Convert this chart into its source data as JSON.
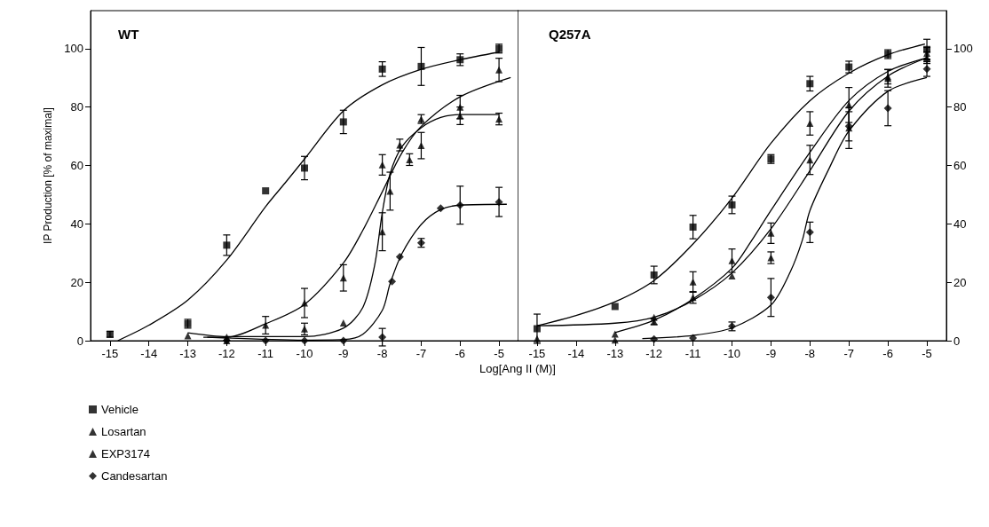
{
  "chart_data": [
    {
      "type": "scatter",
      "title": "WT",
      "ylabel": "IP Production [% of maximal]",
      "xlabel": "Log[Ang II (M)]",
      "xlim": [
        -15.5,
        -4.5
      ],
      "xticks": [
        -15,
        -14,
        -13,
        -12,
        -11,
        -10,
        -9,
        -8,
        -7,
        -6,
        -5
      ],
      "ylim": [
        0,
        113
      ],
      "yticks": [
        0,
        20,
        40,
        60,
        80,
        100
      ],
      "grid": false,
      "legend": "bottom left",
      "series": [
        {
          "name": "Vehicle",
          "color": "#000000",
          "marker": "square",
          "x": [
            -15,
            -13,
            -12,
            -11,
            -10,
            -9,
            -8,
            -7,
            -6,
            -5
          ],
          "values": [
            2.2,
            5.8,
            32.7,
            51.3,
            59.1,
            74.9,
            93,
            93.9,
            96.2,
            100
          ],
          "errors": [
            1,
            1.5,
            3.5,
            null,
            4,
            4,
            2.5,
            6.5,
            2,
            1.5
          ]
        },
        {
          "name": "Losartan",
          "color": "#000000",
          "marker": "triangle",
          "x": [
            -12,
            -11,
            -10,
            -9,
            -8,
            -7,
            -6,
            -5
          ],
          "values": [
            0,
            5.3,
            12.9,
            21.5,
            60.2,
            66.8,
            80,
            92.7
          ],
          "errors": [
            null,
            3,
            5,
            4.5,
            3.5,
            4.5,
            4,
            4
          ]
        },
        {
          "name": "EXP3174",
          "color": "#000000",
          "marker": "triangle",
          "x": [
            -13,
            -12,
            -10,
            -9,
            -8,
            -7.8,
            -7.55,
            -7.3,
            -7,
            -6,
            -5
          ],
          "values": [
            1.7,
            1.2,
            4,
            6.1,
            37.3,
            51.2,
            67,
            62,
            75.9,
            77,
            75.9
          ],
          "errors": [
            null,
            null,
            2,
            null,
            6.5,
            6.5,
            2,
            2,
            1.5,
            3,
            2
          ]
        },
        {
          "name": "Candesartan",
          "color": "#000000",
          "marker": "diamond",
          "x": [
            -12,
            -11,
            -10,
            -9,
            -8,
            -7.75,
            -7.55,
            -7,
            -6.5,
            -6,
            -5
          ],
          "values": [
            0,
            0,
            0,
            0,
            1.2,
            20.3,
            28.7,
            33.5,
            45.3,
            46.4,
            47.5
          ],
          "errors": [
            null,
            null,
            null,
            null,
            3,
            null,
            null,
            1.5,
            null,
            6.5,
            5
          ]
        },
        {
          "type": "line",
          "color": "#000000",
          "marker": "none",
          "x": [
            -14.8,
            -14,
            -13,
            -12,
            -11,
            -10.5,
            -10,
            -9,
            -8,
            -7,
            -6,
            -5
          ],
          "values": [
            0,
            5.3,
            13.9,
            27.6,
            45.9,
            54,
            62.2,
            78.7,
            87.6,
            92.9,
            96.2,
            98.8
          ]
        },
        {
          "type": "line",
          "color": "#000000",
          "marker": "none",
          "x": [
            -12.6,
            -12,
            -11,
            -10,
            -9,
            -8.5,
            -8,
            -7.5,
            -7,
            -6,
            -4.7
          ],
          "values": [
            1.2,
            1.2,
            5.8,
            12.4,
            26.6,
            37.8,
            51,
            64.2,
            73.4,
            83.5,
            90.1
          ]
        },
        {
          "type": "line",
          "color": "#000000",
          "marker": "none",
          "x": [
            -13,
            -12,
            -10,
            -9,
            -8.5,
            -8.2,
            -8,
            -7.8,
            -7.5,
            -7,
            -6.5,
            -6,
            -5
          ],
          "values": [
            2.7,
            1.4,
            1.4,
            4.3,
            11.4,
            25.6,
            43.9,
            57.1,
            66.3,
            72.9,
            76.4,
            77.4,
            77.4
          ]
        },
        {
          "type": "line",
          "color": "#000000",
          "marker": "none",
          "x": [
            -12.5,
            -10,
            -9,
            -8.5,
            -8,
            -7.8,
            -7.5,
            -7,
            -6.5,
            -6,
            -4.8
          ],
          "values": [
            1.2,
            0.2,
            0.4,
            2.2,
            10.4,
            19.5,
            29.7,
            39.8,
            44.9,
            46.4,
            46.7
          ]
        }
      ]
    },
    {
      "type": "scatter",
      "title": "Q257A",
      "xlim": [
        -15.5,
        -4.5
      ],
      "xticks": [
        -15,
        -14,
        -13,
        -12,
        -11,
        -10,
        -9,
        -8,
        -7,
        -6,
        -5
      ],
      "ylim": [
        0,
        113
      ],
      "yticks": [
        0,
        20,
        40,
        60,
        80,
        100
      ],
      "grid": false,
      "legend": false,
      "series": [
        {
          "color": "#000000",
          "marker": "square",
          "x": [
            -15,
            -13,
            -12,
            -11,
            -10,
            -9,
            -8,
            -7,
            -6,
            -5
          ],
          "values": [
            4.1,
            11.7,
            22.5,
            38.9,
            46.5,
            62.2,
            88,
            93.7,
            98.1,
            99.7
          ],
          "errors": [
            5,
            null,
            3,
            4,
            3,
            1.5,
            2.5,
            2,
            1.5,
            3.5
          ]
        },
        {
          "color": "#000000",
          "marker": "triangle",
          "x": [
            -15,
            -13,
            -12,
            -11,
            -10,
            -9,
            -8,
            -7,
            -6,
            -5
          ],
          "values": [
            0.7,
            0.2,
            6.5,
            14.8,
            27.4,
            36.8,
            74.4,
            80.7,
            89.8,
            98.4
          ],
          "errors": [
            null,
            null,
            1,
            2,
            4,
            3.5,
            4,
            6,
            3,
            2
          ]
        },
        {
          "color": "#000000",
          "marker": "triangle",
          "x": [
            -13,
            -12,
            -11,
            -10,
            -9,
            -8,
            -7,
            -6,
            -5
          ],
          "values": [
            2.3,
            8,
            20.1,
            22.2,
            28.4,
            61.9,
            72.8,
            90.4,
            96.9
          ],
          "errors": [
            null,
            null,
            3.5,
            null,
            2,
            5,
            7,
            2.5,
            2
          ]
        },
        {
          "color": "#000000",
          "marker": "diamond",
          "x": [
            -12,
            -11,
            -10,
            -9,
            -8,
            -7,
            -6,
            -5
          ],
          "values": [
            0.5,
            0.9,
            4.9,
            14.8,
            37.1,
            73.4,
            79.6,
            93
          ],
          "errors": [
            null,
            null,
            1.5,
            6.5,
            3.5,
            5,
            6,
            2.5
          ]
        },
        {
          "type": "line",
          "color": "#000000",
          "marker": "none",
          "x": [
            -15,
            -14,
            -13,
            -12,
            -11,
            -10,
            -9,
            -8,
            -7,
            -6,
            -5.05
          ],
          "values": [
            5.1,
            8.6,
            13.3,
            20.6,
            33.1,
            48.8,
            67.6,
            82.2,
            91.6,
            97.9,
            101.6
          ]
        },
        {
          "type": "line",
          "color": "#000000",
          "marker": "none",
          "x": [
            -13,
            -12,
            -11,
            -10,
            -9.5,
            -9,
            -8,
            -7,
            -6,
            -5
          ],
          "values": [
            2.8,
            7,
            14.3,
            24.8,
            34.2,
            44.6,
            64.5,
            82.2,
            92.2,
            96.9
          ]
        },
        {
          "type": "line",
          "color": "#000000",
          "marker": "none",
          "x": [
            -15,
            -13,
            -12,
            -11,
            -10,
            -9,
            -8,
            -7,
            -6,
            -5
          ],
          "values": [
            5.1,
            6,
            8,
            13.8,
            23.2,
            38.3,
            58.2,
            78.6,
            90.6,
            96.9
          ]
        },
        {
          "type": "line",
          "color": "#000000",
          "marker": "none",
          "x": [
            -12.3,
            -11,
            -10,
            -9,
            -8.5,
            -8.2,
            -8,
            -7.5,
            -7,
            -6,
            -5
          ],
          "values": [
            0.7,
            1.8,
            4.4,
            12.2,
            23.7,
            34.2,
            44.6,
            59.2,
            71.8,
            85.4,
            90.1
          ]
        }
      ]
    }
  ]
}
